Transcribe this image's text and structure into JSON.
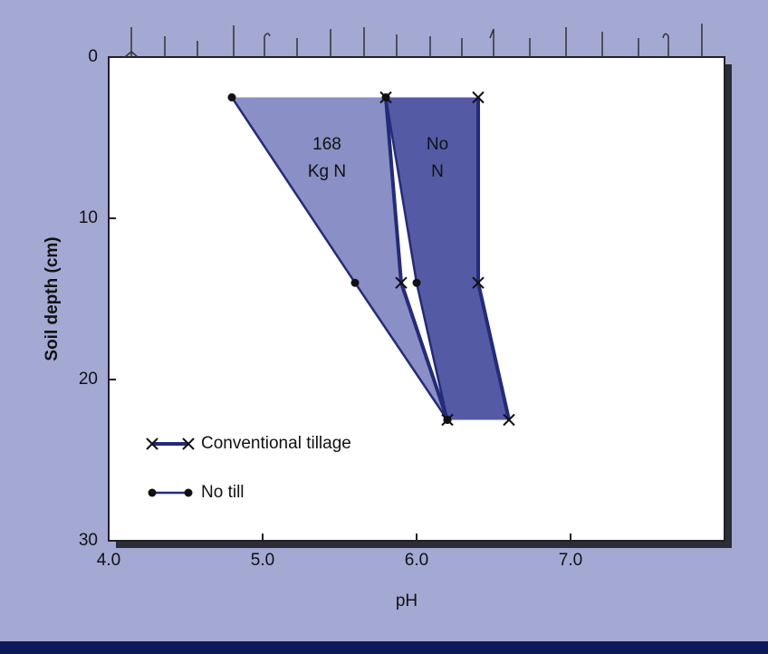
{
  "chart_data": {
    "type": "line",
    "x_label": "pH",
    "y_label": "Soil depth (cm)",
    "xlim": [
      4,
      8
    ],
    "xticks": [
      {
        "value": 4,
        "label": "4.0"
      },
      {
        "value": 5,
        "label": "5.0"
      },
      {
        "value": 6,
        "label": "6.0"
      },
      {
        "value": 7,
        "label": "7.0"
      }
    ],
    "ylim": [
      0,
      30
    ],
    "yticks": [
      0,
      10,
      20,
      30
    ],
    "y_inverted": true,
    "grid": false,
    "line_color": "#232b7a",
    "depths": [
      2.5,
      14,
      22.5
    ],
    "treatments": [
      {
        "label": [
          "168",
          "Kg N"
        ],
        "fill": "#8489c2",
        "conventional": [
          5.8,
          5.9,
          6.2
        ],
        "no_till": [
          4.8,
          5.6,
          6.2
        ]
      },
      {
        "label": [
          "No",
          "N"
        ],
        "fill": "#4b529f",
        "conventional": [
          6.4,
          6.4,
          6.6
        ],
        "no_till": [
          5.8,
          6.0,
          6.2
        ]
      }
    ],
    "legend_position": "lower left",
    "legend": [
      {
        "label": "Conventional tillage",
        "marker": "x"
      },
      {
        "label": "No till",
        "marker": "dot"
      }
    ]
  }
}
